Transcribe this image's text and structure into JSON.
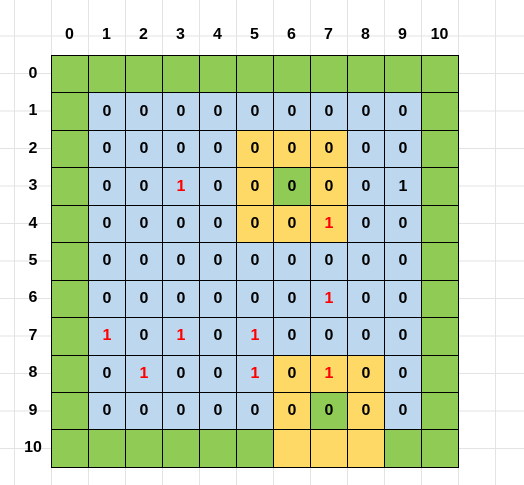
{
  "colors": {
    "G": "#8fcb55",
    "B": "#bdd7ee",
    "Y": "#ffd966",
    "text_default": "#000000",
    "text_highlight": "#ff0000"
  },
  "col_labels": [
    "0",
    "1",
    "2",
    "3",
    "4",
    "5",
    "6",
    "7",
    "8",
    "9",
    "10"
  ],
  "row_labels": [
    "0",
    "1",
    "2",
    "3",
    "4",
    "5",
    "6",
    "7",
    "8",
    "9",
    "10"
  ],
  "rows": [
    {
      "fills": [
        "G",
        "G",
        "G",
        "G",
        "G",
        "G",
        "G",
        "G",
        "G",
        "G",
        "G"
      ],
      "values": [
        "",
        "",
        "",
        "",
        "",
        "",
        "",
        "",
        "",
        "",
        ""
      ],
      "red": []
    },
    {
      "fills": [
        "G",
        "B",
        "B",
        "B",
        "B",
        "B",
        "B",
        "B",
        "B",
        "B",
        "G"
      ],
      "values": [
        "",
        "0",
        "0",
        "0",
        "0",
        "0",
        "0",
        "0",
        "0",
        "0",
        ""
      ],
      "red": []
    },
    {
      "fills": [
        "G",
        "B",
        "B",
        "B",
        "B",
        "Y",
        "Y",
        "Y",
        "B",
        "B",
        "G"
      ],
      "values": [
        "",
        "0",
        "0",
        "0",
        "0",
        "0",
        "0",
        "0",
        "0",
        "0",
        ""
      ],
      "red": []
    },
    {
      "fills": [
        "G",
        "B",
        "B",
        "B",
        "B",
        "Y",
        "G",
        "Y",
        "B",
        "B",
        "G"
      ],
      "values": [
        "",
        "0",
        "0",
        "1",
        "0",
        "0",
        "0",
        "0",
        "0",
        "1",
        ""
      ],
      "red": [
        3
      ]
    },
    {
      "fills": [
        "G",
        "B",
        "B",
        "B",
        "B",
        "Y",
        "Y",
        "Y",
        "B",
        "B",
        "G"
      ],
      "values": [
        "",
        "0",
        "0",
        "0",
        "0",
        "0",
        "0",
        "1",
        "0",
        "0",
        ""
      ],
      "red": [
        7
      ]
    },
    {
      "fills": [
        "G",
        "B",
        "B",
        "B",
        "B",
        "B",
        "B",
        "B",
        "B",
        "B",
        "G"
      ],
      "values": [
        "",
        "0",
        "0",
        "0",
        "0",
        "0",
        "0",
        "0",
        "0",
        "0",
        ""
      ],
      "red": []
    },
    {
      "fills": [
        "G",
        "B",
        "B",
        "B",
        "B",
        "B",
        "B",
        "B",
        "B",
        "B",
        "G"
      ],
      "values": [
        "",
        "0",
        "0",
        "0",
        "0",
        "0",
        "0",
        "1",
        "0",
        "0",
        ""
      ],
      "red": [
        7
      ]
    },
    {
      "fills": [
        "G",
        "B",
        "B",
        "B",
        "B",
        "B",
        "B",
        "B",
        "B",
        "B",
        "G"
      ],
      "values": [
        "",
        "1",
        "0",
        "1",
        "0",
        "1",
        "0",
        "0",
        "0",
        "0",
        ""
      ],
      "red": [
        1,
        3,
        5
      ]
    },
    {
      "fills": [
        "G",
        "B",
        "B",
        "B",
        "B",
        "B",
        "Y",
        "Y",
        "Y",
        "B",
        "G"
      ],
      "values": [
        "",
        "0",
        "1",
        "0",
        "0",
        "1",
        "0",
        "1",
        "0",
        "0",
        ""
      ],
      "red": [
        2,
        5,
        7
      ]
    },
    {
      "fills": [
        "G",
        "B",
        "B",
        "B",
        "B",
        "B",
        "Y",
        "G",
        "Y",
        "B",
        "G"
      ],
      "values": [
        "",
        "0",
        "0",
        "0",
        "0",
        "0",
        "0",
        "0",
        "0",
        "0",
        ""
      ],
      "red": []
    },
    {
      "fills": [
        "G",
        "G",
        "G",
        "G",
        "G",
        "G",
        "Y",
        "Y",
        "Y",
        "G",
        "G"
      ],
      "values": [
        "",
        "",
        "",
        "",
        "",
        "",
        "",
        "",
        "",
        "",
        ""
      ],
      "red": []
    }
  ]
}
